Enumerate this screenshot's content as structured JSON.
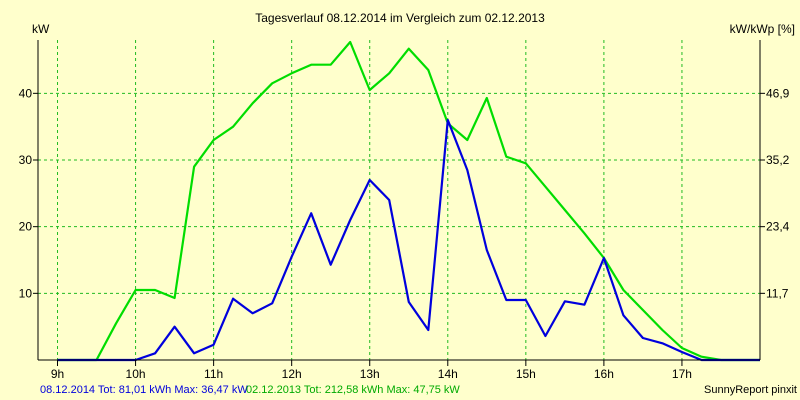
{
  "chart_data": {
    "type": "line",
    "title": "Tagesverlauf 08.12.2014 im Vergleich zum 02.12.2013",
    "ylabel_left": "kW",
    "ylabel_right": "kW/kWp [%]",
    "x_ticks": [
      "9h",
      "10h",
      "11h",
      "12h",
      "13h",
      "14h",
      "15h",
      "16h",
      "17h"
    ],
    "xlim": [
      8.75,
      18.0
    ],
    "ylim": [
      0,
      48
    ],
    "y_ticks_left": [
      "10",
      "20",
      "30",
      "40"
    ],
    "y_tick_values_left": [
      10,
      20,
      30,
      40
    ],
    "y_ticks_right": [
      "11,7",
      "23,4",
      "35,2",
      "46,9"
    ],
    "y_tick_values_right": [
      10,
      20,
      30,
      40
    ],
    "grid": true,
    "colors": {
      "background": "#ffffcc",
      "grid": "#22bb22",
      "axis": "#000000"
    },
    "series": [
      {
        "name": "08.12.2014",
        "color": "#0000dd",
        "x": [
          9.0,
          9.25,
          9.5,
          9.75,
          10.0,
          10.25,
          10.5,
          10.75,
          11.0,
          11.25,
          11.5,
          11.75,
          12.0,
          12.25,
          12.5,
          12.75,
          13.0,
          13.25,
          13.5,
          13.75,
          14.0,
          14.25,
          14.5,
          14.75,
          15.0,
          15.25,
          15.5,
          15.75,
          16.0,
          16.25,
          16.5,
          16.75,
          17.0,
          17.25,
          17.5,
          17.75,
          18.0
        ],
        "values": [
          0,
          0,
          0,
          0,
          0,
          1.0,
          5.0,
          1.0,
          2.3,
          9.2,
          7.0,
          8.5,
          15.5,
          22.0,
          14.3,
          21.0,
          27.0,
          24.0,
          8.7,
          4.5,
          36.0,
          28.5,
          16.5,
          9.0,
          9.0,
          3.6,
          8.8,
          8.3,
          15.3,
          6.7,
          3.3,
          2.5,
          1.2,
          0,
          0,
          0,
          0
        ]
      },
      {
        "name": "02.12.2013",
        "color": "#00dd00",
        "x": [
          9.0,
          9.25,
          9.5,
          9.75,
          10.0,
          10.25,
          10.5,
          10.75,
          11.0,
          11.25,
          11.5,
          11.75,
          12.0,
          12.25,
          12.5,
          12.75,
          13.0,
          13.25,
          13.5,
          13.75,
          14.0,
          14.25,
          14.5,
          14.75,
          15.0,
          15.25,
          15.5,
          15.75,
          16.0,
          16.25,
          16.5,
          16.75,
          17.0,
          17.25,
          17.5,
          17.75,
          18.0
        ],
        "values": [
          0,
          0,
          0,
          5.5,
          10.5,
          10.5,
          9.3,
          29.0,
          33.0,
          35.0,
          38.5,
          41.5,
          43.0,
          44.3,
          44.3,
          47.7,
          40.5,
          43.0,
          46.7,
          43.5,
          35.5,
          33.0,
          39.3,
          30.5,
          29.5,
          26.0,
          22.5,
          19.0,
          15.3,
          10.5,
          7.5,
          4.5,
          1.8,
          0.5,
          0,
          0,
          0
        ]
      }
    ],
    "footer": {
      "left_text": "08.12.2014 Tot: 81,01 kWh Max: 36,47 kW",
      "middle_text": "02.12.2013 Tot: 212,58 kWh Max: 47,75 kW",
      "right_text": "SunnyReport pinxit"
    }
  }
}
